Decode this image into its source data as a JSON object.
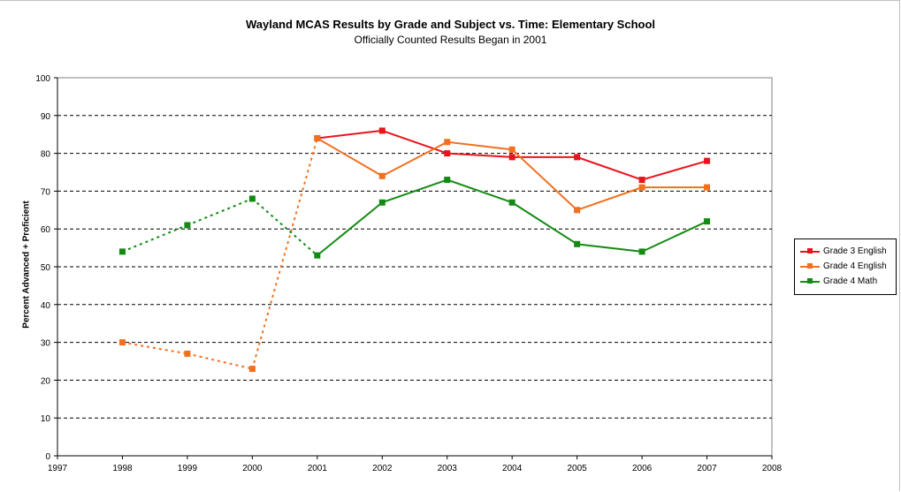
{
  "chart_data": {
    "type": "line",
    "title": "Wayland MCAS Results by Grade and Subject vs. Time: Elementary School",
    "subtitle": "Officially Counted Results Began in 2001",
    "xlabel": "",
    "ylabel": "Percent Advanced + Proficient",
    "xlim": [
      1997,
      2008
    ],
    "ylim": [
      0,
      100
    ],
    "xticks": [
      1997,
      1998,
      1999,
      2000,
      2001,
      2002,
      2003,
      2004,
      2005,
      2006,
      2007,
      2008
    ],
    "yticks": [
      0,
      10,
      20,
      30,
      40,
      50,
      60,
      70,
      80,
      90,
      100
    ],
    "grid": "horizontal dashed",
    "legend_position": "right",
    "series": [
      {
        "name": "Grade 3 English",
        "color": "#e8141c",
        "x": [
          2001,
          2002,
          2003,
          2004,
          2005,
          2006,
          2007
        ],
        "y": [
          84,
          86,
          80,
          79,
          79,
          73,
          78
        ],
        "dotted_until": 2001
      },
      {
        "name": "Grade 4 English",
        "color": "#f07020",
        "x": [
          1998,
          1999,
          2000,
          2001,
          2002,
          2003,
          2004,
          2005,
          2006,
          2007
        ],
        "y": [
          30,
          27,
          23,
          84,
          74,
          83,
          81,
          65,
          71,
          71
        ],
        "dotted_until": 2001
      },
      {
        "name": "Grade 4 Math",
        "color": "#138a13",
        "x": [
          1998,
          1999,
          2000,
          2001,
          2002,
          2003,
          2004,
          2005,
          2006,
          2007
        ],
        "y": [
          54,
          61,
          68,
          53,
          67,
          73,
          67,
          56,
          54,
          62
        ],
        "dotted_until": 2001
      }
    ]
  }
}
